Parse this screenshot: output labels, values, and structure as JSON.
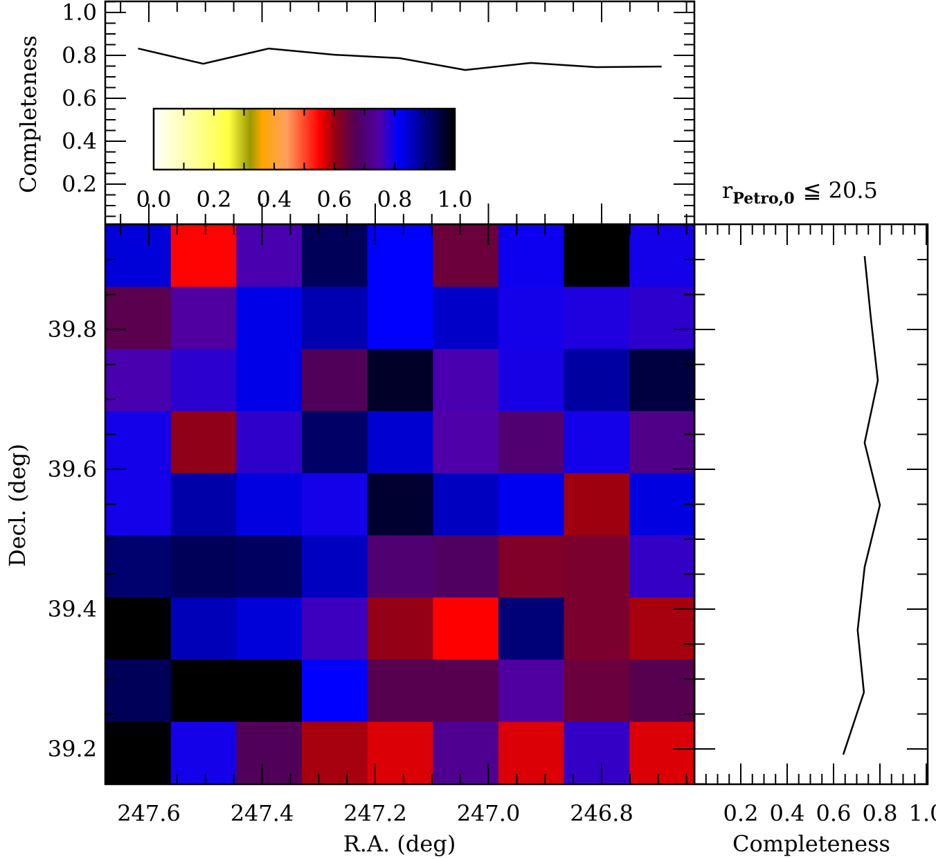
{
  "chart_data": {
    "type": "heatmap",
    "xlabel": "R.A. (deg)",
    "ylabel": "Decl. (deg)",
    "xlim": [
      247.677,
      246.635
    ],
    "ylim": [
      39.15,
      39.95
    ],
    "x_ticks": [
      "247.6",
      "247.4",
      "247.2",
      "247.0",
      "246.8"
    ],
    "y_ticks": [
      "39.2",
      "39.4",
      "39.6",
      "39.8"
    ],
    "ra_centers": [
      247.619,
      247.504,
      247.388,
      247.272,
      247.157,
      247.041,
      246.925,
      246.81,
      246.694
    ],
    "dec_centers": [
      39.905,
      39.816,
      39.727,
      39.638,
      39.549,
      39.46,
      39.37,
      39.281,
      39.192
    ],
    "values": [
      [
        0.839,
        0.548,
        0.755,
        0.934,
        0.81,
        0.643,
        0.8,
        1.0,
        0.795
      ],
      [
        0.66,
        0.742,
        0.827,
        0.869,
        0.81,
        0.851,
        0.795,
        0.787,
        0.776
      ],
      [
        0.755,
        0.777,
        0.827,
        0.67,
        0.97,
        0.755,
        0.792,
        0.881,
        0.952
      ],
      [
        0.795,
        0.609,
        0.774,
        0.923,
        0.845,
        0.75,
        0.694,
        0.795,
        0.718
      ],
      [
        0.795,
        0.875,
        0.833,
        0.795,
        0.964,
        0.857,
        0.821,
        0.597,
        0.833
      ],
      [
        0.917,
        0.934,
        0.928,
        0.857,
        0.694,
        0.678,
        0.624,
        0.628,
        0.771
      ],
      [
        1.0,
        0.863,
        0.839,
        0.765,
        0.605,
        0.55,
        0.911,
        0.628,
        0.593
      ],
      [
        0.934,
        1.0,
        1.0,
        0.81,
        0.662,
        0.662,
        0.742,
        0.645,
        0.662
      ],
      [
        1.0,
        0.795,
        0.67,
        0.593,
        0.568,
        0.726,
        0.568,
        0.771,
        0.568
      ]
    ],
    "colorbar": {
      "range": [
        0,
        1
      ],
      "tick_labels": [
        "0.0",
        "0.2",
        "0.4",
        "0.6",
        "0.8",
        "1.0"
      ],
      "stops": [
        [
          0.0,
          "#ffffff"
        ],
        [
          0.25,
          "#ffff40"
        ],
        [
          0.32,
          "#999900"
        ],
        [
          0.36,
          "#ffa500"
        ],
        [
          0.44,
          "#ffa060"
        ],
        [
          0.55,
          "#ff0000"
        ],
        [
          0.6,
          "#990010"
        ],
        [
          0.67,
          "#500058"
        ],
        [
          0.75,
          "#5000a8"
        ],
        [
          0.81,
          "#0000ff"
        ],
        [
          1.0,
          "#000000"
        ]
      ]
    },
    "top_panel": {
      "ylabel": "Completeness",
      "ylim": [
        0.0,
        1.05
      ],
      "y_ticks": [
        "0.2",
        "0.4",
        "0.6",
        "0.8",
        "1.0"
      ],
      "ra": [
        247.619,
        247.504,
        247.388,
        247.272,
        247.157,
        247.041,
        246.925,
        246.81,
        246.694
      ],
      "completeness": [
        0.832,
        0.761,
        0.832,
        0.803,
        0.787,
        0.732,
        0.765,
        0.745,
        0.748
      ]
    },
    "right_panel": {
      "xlabel": "Completeness",
      "xlim": [
        0.0,
        1.0
      ],
      "x_ticks": [
        "0.2",
        "0.4",
        "0.6",
        "0.8",
        "1.0"
      ],
      "dec": [
        39.905,
        39.816,
        39.727,
        39.638,
        39.549,
        39.46,
        39.37,
        39.281,
        39.192
      ],
      "completeness": [
        0.734,
        0.761,
        0.791,
        0.734,
        0.8,
        0.734,
        0.704,
        0.731,
        0.642
      ]
    },
    "annotation": {
      "main": "r",
      "subscript": "Petro,0",
      "relation": "≦ 20.5"
    }
  }
}
